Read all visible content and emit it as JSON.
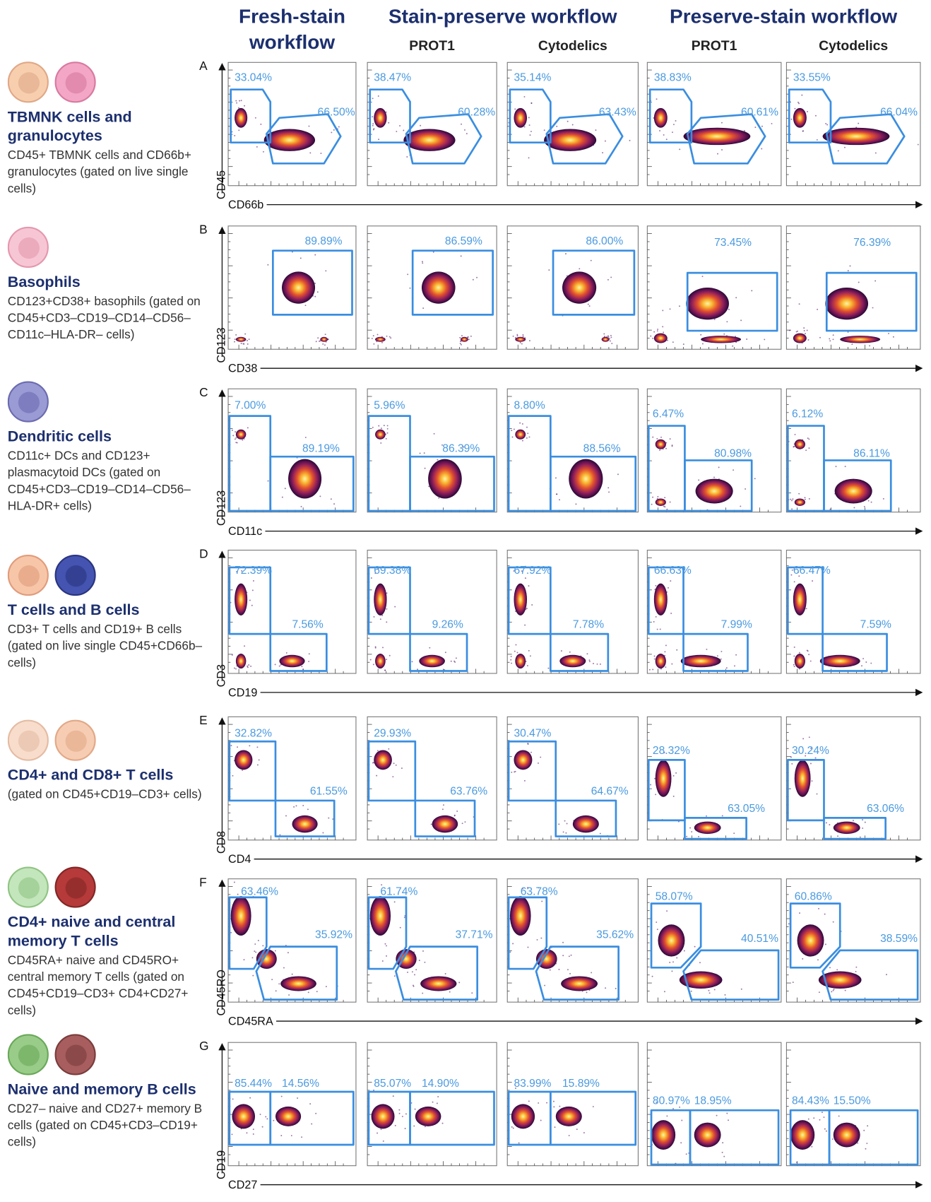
{
  "header": {
    "columns": [
      {
        "title": "Fresh-stain workflow"
      },
      {
        "title": "Stain-preserve workflow",
        "subtitles": [
          "PROT1",
          "Cytodelics"
        ]
      },
      {
        "title": "Preserve-stain workflow",
        "subtitles": [
          "PROT1",
          "Cytodelics"
        ]
      }
    ]
  },
  "rows": [
    {
      "letter": "A",
      "title": "TBMNK cells and granulocytes",
      "description": "CD45+ TBMNK cells and CD66b+ granulocytes (gated on live single cells)",
      "y_axis": "CD45",
      "x_axis": "CD66b",
      "gates": [
        [
          "33.04%",
          "66.50%"
        ],
        [
          "38.47%",
          "60.28%"
        ],
        [
          "35.14%",
          "63.43%"
        ],
        [
          "38.83%",
          "60.61%"
        ],
        [
          "33.55%",
          "66.04%"
        ]
      ]
    },
    {
      "letter": "B",
      "title": "Basophils",
      "description": "CD123+CD38+ basophils (gated on CD45+CD3–CD19–CD14–CD56–CD11c–HLA-DR– cells)",
      "y_axis": "CD123",
      "x_axis": "CD38",
      "gates": [
        [
          "89.89%"
        ],
        [
          "86.59%"
        ],
        [
          "86.00%"
        ],
        [
          "73.45%"
        ],
        [
          "76.39%"
        ]
      ]
    },
    {
      "letter": "C",
      "title": "Dendritic cells",
      "description": "CD11c+ DCs and CD123+ plasmacytoid DCs (gated on CD45+CD3–CD19–CD14–CD56–HLA-DR+ cells)",
      "y_axis": "CD123",
      "x_axis": "CD11c",
      "gates": [
        [
          "7.00%",
          "89.19%"
        ],
        [
          "5.96%",
          "86.39%"
        ],
        [
          "8.80%",
          "88.56%"
        ],
        [
          "6.47%",
          "80.98%"
        ],
        [
          "6.12%",
          "86.11%"
        ]
      ]
    },
    {
      "letter": "D",
      "title": "T cells and B cells",
      "description": "CD3+ T cells and CD19+ B cells (gated on live single CD45+CD66b– cells)",
      "y_axis": "CD3",
      "x_axis": "CD19",
      "gates": [
        [
          "72.39%",
          "7.56%"
        ],
        [
          "69.38%",
          "9.26%"
        ],
        [
          "67.92%",
          "7.78%"
        ],
        [
          "66.63%",
          "7.99%"
        ],
        [
          "66.47%",
          "7.59%"
        ]
      ]
    },
    {
      "letter": "E",
      "title": "CD4+ and CD8+ T cells",
      "description": "(gated on CD45+CD19–CD3+ cells)",
      "y_axis": "CD8",
      "x_axis": "CD4",
      "gates": [
        [
          "32.82%",
          "61.55%"
        ],
        [
          "29.93%",
          "63.76%"
        ],
        [
          "30.47%",
          "64.67%"
        ],
        [
          "28.32%",
          "63.05%"
        ],
        [
          "30.24%",
          "63.06%"
        ]
      ]
    },
    {
      "letter": "F",
      "title": "CD4+ naive and central memory T cells",
      "description": "CD45RA+ naive and CD45RO+ central memory T cells (gated on CD45+CD19–CD3+ CD4+CD27+ cells)",
      "y_axis": "CD45RO",
      "x_axis": "CD45RA",
      "gates": [
        [
          "63.46%",
          "35.92%"
        ],
        [
          "61.74%",
          "37.71%"
        ],
        [
          "63.78%",
          "35.62%"
        ],
        [
          "58.07%",
          "40.51%"
        ],
        [
          "60.86%",
          "38.59%"
        ]
      ]
    },
    {
      "letter": "G",
      "title": "Naive and memory B cells",
      "description": "CD27– naive and CD27+ memory B cells (gated on CD45+CD3–CD19+ cells)",
      "y_axis": "CD19",
      "x_axis": "CD27",
      "gates": [
        [
          "85.44%",
          "14.56%"
        ],
        [
          "85.07%",
          "14.90%"
        ],
        [
          "83.99%",
          "15.89%"
        ],
        [
          "80.97%",
          "18.95%"
        ],
        [
          "84.43%",
          "15.50%"
        ]
      ]
    }
  ]
}
